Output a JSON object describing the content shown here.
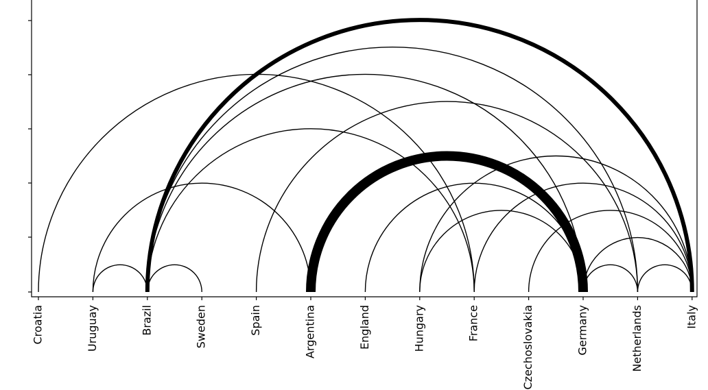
{
  "chart_data": {
    "type": "arc",
    "title": "",
    "xlabel": "",
    "ylabel": "",
    "grid": false,
    "nodes": [
      "Croatia",
      "Uruguay",
      "Brazil",
      "Sweden",
      "Spain",
      "Argentina",
      "England",
      "Hungary",
      "France",
      "Czechoslovakia",
      "Germany",
      "Netherlands",
      "Italy"
    ],
    "edges": [
      {
        "source": "Croatia",
        "target": "France",
        "weight": 1
      },
      {
        "source": "Uruguay",
        "target": "Brazil",
        "weight": 1
      },
      {
        "source": "Uruguay",
        "target": "Argentina",
        "weight": 1
      },
      {
        "source": "Brazil",
        "target": "Sweden",
        "weight": 1
      },
      {
        "source": "Brazil",
        "target": "France",
        "weight": 1
      },
      {
        "source": "Brazil",
        "target": "Germany",
        "weight": 1
      },
      {
        "source": "Brazil",
        "target": "Netherlands",
        "weight": 1
      },
      {
        "source": "Brazil",
        "target": "Italy",
        "weight": 2
      },
      {
        "source": "Spain",
        "target": "Netherlands",
        "weight": 1
      },
      {
        "source": "Argentina",
        "target": "Germany",
        "weight": 3
      },
      {
        "source": "England",
        "target": "Germany",
        "weight": 1
      },
      {
        "source": "Hungary",
        "target": "Germany",
        "weight": 1
      },
      {
        "source": "Hungary",
        "target": "Italy",
        "weight": 1
      },
      {
        "source": "France",
        "target": "Italy",
        "weight": 1
      },
      {
        "source": "Czechoslovakia",
        "target": "Italy",
        "weight": 1
      },
      {
        "source": "Germany",
        "target": "Netherlands",
        "weight": 1
      },
      {
        "source": "Germany",
        "target": "Italy",
        "weight": 1
      },
      {
        "source": "Netherlands",
        "target": "Italy",
        "weight": 1
      }
    ]
  }
}
